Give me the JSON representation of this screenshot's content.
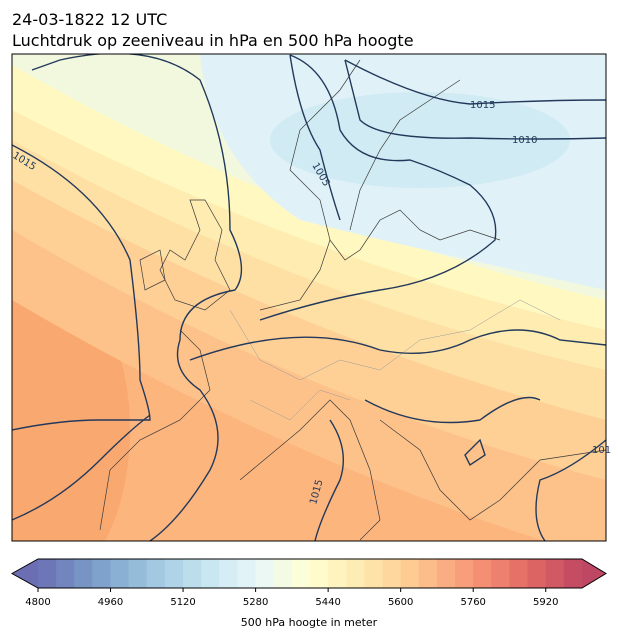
{
  "header": {
    "date": "24-03-1822 12 UTC",
    "title": "Luchtdruk op zeeniveau in hPa en 500 hPa hoogte"
  },
  "contour_labels": [
    "1015",
    "1010",
    "1005",
    "1015",
    "1015",
    "101"
  ],
  "colorbar": {
    "label": "500 hPa hoogte in meter",
    "range": [
      4800,
      6000
    ],
    "step": 40,
    "ticks": [
      4800,
      4960,
      5120,
      5280,
      5440,
      5600,
      5760,
      5920
    ]
  }
}
